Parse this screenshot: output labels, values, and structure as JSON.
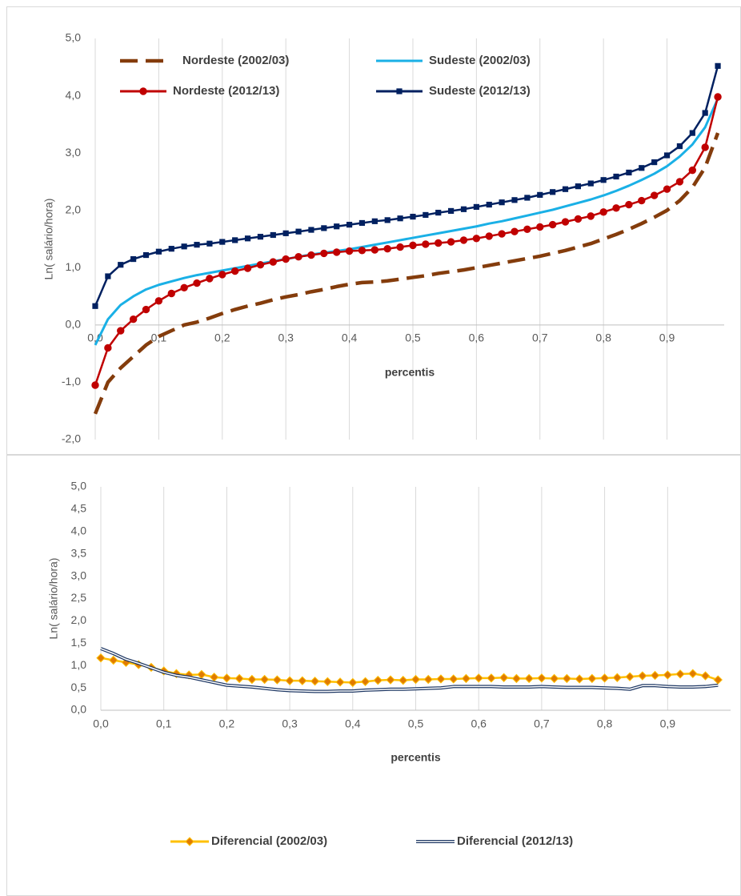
{
  "chart_data": [
    {
      "type": "line",
      "y_label": "Ln( salário/hora)",
      "x_label": "percentis",
      "xlim": [
        0,
        0.99
      ],
      "ylim": [
        -2,
        5
      ],
      "xticks": [
        {
          "value": 0,
          "label": "0,0"
        },
        {
          "value": 0.1,
          "label": "0,1"
        },
        {
          "value": 0.2,
          "label": "0,2"
        },
        {
          "value": 0.3,
          "label": "0,3"
        },
        {
          "value": 0.4,
          "label": "0,4"
        },
        {
          "value": 0.5,
          "label": "0,5"
        },
        {
          "value": 0.6,
          "label": "0,6"
        },
        {
          "value": 0.7,
          "label": "0,7"
        },
        {
          "value": 0.8,
          "label": "0,8"
        },
        {
          "value": 0.9,
          "label": "0,9"
        }
      ],
      "yticks": [
        {
          "value": -2,
          "label": "-2,0"
        },
        {
          "value": -1,
          "label": "-1,0"
        },
        {
          "value": 0,
          "label": "0,0"
        },
        {
          "value": 1,
          "label": "1,0"
        },
        {
          "value": 2,
          "label": "2,0"
        },
        {
          "value": 3,
          "label": "3,0"
        },
        {
          "value": 4,
          "label": "4,0"
        },
        {
          "value": 5,
          "label": "5,0"
        }
      ],
      "grid": "x",
      "legend": "top",
      "x": [
        0,
        0.02,
        0.04,
        0.06,
        0.08,
        0.1,
        0.12,
        0.14,
        0.16,
        0.18,
        0.2,
        0.22,
        0.24,
        0.26,
        0.28,
        0.3,
        0.32,
        0.34,
        0.36,
        0.38,
        0.4,
        0.42,
        0.44,
        0.46,
        0.48,
        0.5,
        0.52,
        0.54,
        0.56,
        0.58,
        0.6,
        0.62,
        0.64,
        0.66,
        0.68,
        0.7,
        0.72,
        0.74,
        0.76,
        0.78,
        0.8,
        0.82,
        0.84,
        0.86,
        0.88,
        0.9,
        0.92,
        0.94,
        0.96,
        0.98
      ],
      "series": [
        {
          "name": "Nordeste (2002/03)",
          "color": "#843c0c",
          "line_style": "dashed",
          "values": [
            -1.55,
            -1.0,
            -0.75,
            -0.55,
            -0.35,
            -0.2,
            -0.1,
            0.0,
            0.05,
            0.12,
            0.2,
            0.27,
            0.33,
            0.38,
            0.44,
            0.49,
            0.53,
            0.58,
            0.62,
            0.67,
            0.71,
            0.74,
            0.75,
            0.77,
            0.8,
            0.83,
            0.86,
            0.9,
            0.93,
            0.96,
            1.0,
            1.04,
            1.08,
            1.12,
            1.16,
            1.2,
            1.25,
            1.3,
            1.36,
            1.42,
            1.5,
            1.58,
            1.67,
            1.77,
            1.88,
            2.0,
            2.17,
            2.4,
            2.75,
            3.35
          ]
        },
        {
          "name": "Sudeste (2002/03)",
          "color": "#1ab0e6",
          "line_style": "solid",
          "values": [
            -0.35,
            0.1,
            0.35,
            0.5,
            0.62,
            0.7,
            0.76,
            0.82,
            0.87,
            0.91,
            0.95,
            0.99,
            1.03,
            1.07,
            1.11,
            1.15,
            1.19,
            1.23,
            1.26,
            1.29,
            1.32,
            1.36,
            1.4,
            1.44,
            1.48,
            1.52,
            1.56,
            1.6,
            1.64,
            1.68,
            1.72,
            1.77,
            1.81,
            1.86,
            1.91,
            1.96,
            2.01,
            2.07,
            2.13,
            2.19,
            2.26,
            2.34,
            2.43,
            2.53,
            2.64,
            2.77,
            2.94,
            3.15,
            3.45,
            3.95
          ]
        },
        {
          "name": "Nordeste (2012/13)",
          "color": "#c00000",
          "line_style": "solid",
          "marker": "circle",
          "values": [
            -1.05,
            -0.4,
            -0.1,
            0.1,
            0.27,
            0.42,
            0.55,
            0.65,
            0.73,
            0.81,
            0.88,
            0.94,
            0.99,
            1.05,
            1.1,
            1.15,
            1.19,
            1.22,
            1.25,
            1.27,
            1.29,
            1.3,
            1.31,
            1.33,
            1.36,
            1.39,
            1.41,
            1.43,
            1.45,
            1.48,
            1.51,
            1.55,
            1.59,
            1.63,
            1.67,
            1.71,
            1.75,
            1.8,
            1.85,
            1.9,
            1.97,
            2.04,
            2.1,
            2.17,
            2.26,
            2.37,
            2.5,
            2.7,
            3.1,
            3.98
          ]
        },
        {
          "name": "Sudeste (2012/13)",
          "color": "#002060",
          "line_style": "solid",
          "marker": "square",
          "values": [
            0.33,
            0.85,
            1.05,
            1.15,
            1.22,
            1.28,
            1.33,
            1.37,
            1.4,
            1.42,
            1.45,
            1.48,
            1.51,
            1.54,
            1.57,
            1.6,
            1.63,
            1.66,
            1.69,
            1.72,
            1.75,
            1.78,
            1.81,
            1.83,
            1.86,
            1.89,
            1.92,
            1.96,
            1.99,
            2.02,
            2.06,
            2.1,
            2.14,
            2.18,
            2.22,
            2.27,
            2.32,
            2.37,
            2.42,
            2.47,
            2.53,
            2.59,
            2.66,
            2.74,
            2.84,
            2.96,
            3.12,
            3.35,
            3.7,
            4.52
          ]
        }
      ]
    },
    {
      "type": "line",
      "y_label": "Ln( salário/hora)",
      "x_label": "percentis",
      "xlim": [
        0,
        1.0
      ],
      "ylim": [
        0,
        5
      ],
      "xticks": [
        {
          "value": 0,
          "label": "0,0"
        },
        {
          "value": 0.1,
          "label": "0,1"
        },
        {
          "value": 0.2,
          "label": "0,2"
        },
        {
          "value": 0.3,
          "label": "0,3"
        },
        {
          "value": 0.4,
          "label": "0,4"
        },
        {
          "value": 0.5,
          "label": "0,5"
        },
        {
          "value": 0.6,
          "label": "0,6"
        },
        {
          "value": 0.7,
          "label": "0,7"
        },
        {
          "value": 0.8,
          "label": "0,8"
        },
        {
          "value": 0.9,
          "label": "0,9"
        }
      ],
      "yticks": [
        {
          "value": 0,
          "label": "0,0"
        },
        {
          "value": 0.5,
          "label": "0,5"
        },
        {
          "value": 1,
          "label": "1,0"
        },
        {
          "value": 1.5,
          "label": "1,5"
        },
        {
          "value": 2,
          "label": "2,0"
        },
        {
          "value": 2.5,
          "label": "2,5"
        },
        {
          "value": 3,
          "label": "3,0"
        },
        {
          "value": 3.5,
          "label": "3,5"
        },
        {
          "value": 4,
          "label": "4,0"
        },
        {
          "value": 4.5,
          "label": "4,5"
        },
        {
          "value": 5,
          "label": "5,0"
        }
      ],
      "grid": "x",
      "legend": "bottom",
      "x": [
        0,
        0.02,
        0.04,
        0.06,
        0.08,
        0.1,
        0.12,
        0.14,
        0.16,
        0.18,
        0.2,
        0.22,
        0.24,
        0.26,
        0.28,
        0.3,
        0.32,
        0.34,
        0.36,
        0.38,
        0.4,
        0.42,
        0.44,
        0.46,
        0.48,
        0.5,
        0.52,
        0.54,
        0.56,
        0.58,
        0.6,
        0.62,
        0.64,
        0.66,
        0.68,
        0.7,
        0.72,
        0.74,
        0.76,
        0.78,
        0.8,
        0.82,
        0.84,
        0.86,
        0.88,
        0.9,
        0.92,
        0.94,
        0.96,
        0.98
      ],
      "series": [
        {
          "name": "Diferencial (2002/03)",
          "color": "#ffc000",
          "marker_color": "#e07b00",
          "line_style": "solid",
          "marker": "diamond",
          "values": [
            1.17,
            1.12,
            1.07,
            1.02,
            0.96,
            0.88,
            0.82,
            0.79,
            0.8,
            0.74,
            0.72,
            0.71,
            0.69,
            0.69,
            0.68,
            0.66,
            0.66,
            0.65,
            0.64,
            0.63,
            0.62,
            0.64,
            0.67,
            0.68,
            0.67,
            0.69,
            0.69,
            0.7,
            0.7,
            0.71,
            0.72,
            0.72,
            0.73,
            0.71,
            0.71,
            0.72,
            0.71,
            0.71,
            0.7,
            0.71,
            0.72,
            0.73,
            0.75,
            0.77,
            0.78,
            0.79,
            0.81,
            0.82,
            0.77,
            0.68
          ]
        },
        {
          "name": "Diferencial (2012/13)",
          "color": "#1f3864",
          "line_style": "double",
          "values": [
            1.38,
            1.27,
            1.14,
            1.05,
            0.95,
            0.85,
            0.78,
            0.74,
            0.68,
            0.62,
            0.56,
            0.54,
            0.52,
            0.49,
            0.46,
            0.44,
            0.43,
            0.42,
            0.42,
            0.43,
            0.43,
            0.45,
            0.46,
            0.47,
            0.47,
            0.48,
            0.49,
            0.5,
            0.53,
            0.53,
            0.53,
            0.53,
            0.52,
            0.52,
            0.52,
            0.53,
            0.52,
            0.51,
            0.51,
            0.51,
            0.5,
            0.49,
            0.47,
            0.55,
            0.55,
            0.53,
            0.52,
            0.52,
            0.53,
            0.56
          ]
        }
      ]
    }
  ]
}
